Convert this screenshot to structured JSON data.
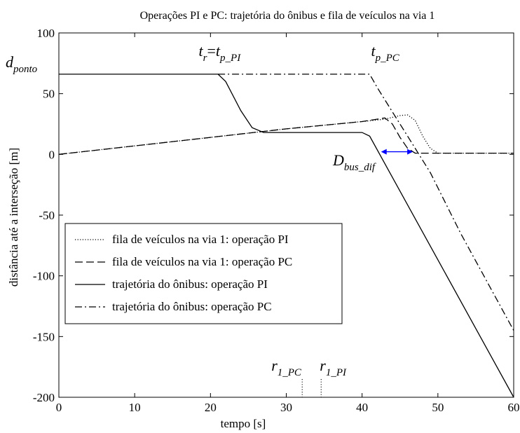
{
  "chart_data": {
    "type": "line",
    "title": "Operações PI e PC: trajetória do ônibus e fila de veículos na via 1",
    "xlabel": "tempo [s]",
    "ylabel": "distância até a interseção [m]",
    "xlim": [
      0,
      60
    ],
    "ylim": [
      -200,
      100
    ],
    "xticks": [
      0,
      10,
      20,
      30,
      40,
      50,
      60
    ],
    "yticks": [
      -200,
      -150,
      -100,
      -50,
      0,
      50,
      100
    ],
    "xtick_labels": [
      "0",
      "10",
      "20",
      "30",
      "40",
      "50",
      "60"
    ],
    "ytick_labels": [
      "-200",
      "-150",
      "-100",
      "-50",
      "0",
      "50",
      "100"
    ],
    "grid": false,
    "legend_position": "lower-left",
    "series": [
      {
        "name": "fila de veículos na via 1: operação PI",
        "style": "dotted",
        "color": "#000000",
        "points": [
          [
            0,
            0
          ],
          [
            10,
            7
          ],
          [
            20,
            14
          ],
          [
            30,
            21
          ],
          [
            40,
            27
          ],
          [
            43,
            29
          ],
          [
            45,
            32
          ],
          [
            46,
            32.5
          ],
          [
            47,
            28
          ],
          [
            48,
            15
          ],
          [
            49,
            5
          ],
          [
            50,
            1
          ],
          [
            60,
            1
          ]
        ]
      },
      {
        "name": "fila de veículos na via 1: operação PC",
        "style": "dashed",
        "color": "#000000",
        "points": [
          [
            0,
            0
          ],
          [
            10,
            7
          ],
          [
            20,
            14
          ],
          [
            30,
            21
          ],
          [
            40,
            27
          ],
          [
            43,
            30
          ],
          [
            44,
            25
          ],
          [
            45,
            14
          ],
          [
            46,
            5
          ],
          [
            47,
            1
          ],
          [
            60,
            1
          ]
        ]
      },
      {
        "name": "trajetória do ônibus: operação PI",
        "style": "solid",
        "color": "#000000",
        "points": [
          [
            0,
            66
          ],
          [
            21,
            66
          ],
          [
            22,
            60
          ],
          [
            24,
            36
          ],
          [
            25.5,
            22
          ],
          [
            27,
            18
          ],
          [
            40,
            18
          ],
          [
            41,
            15
          ],
          [
            60,
            -200
          ]
        ]
      },
      {
        "name": "trajetória do ônibus: operação PC",
        "style": "dashdot",
        "color": "#000000",
        "points": [
          [
            21,
            66
          ],
          [
            41,
            66
          ],
          [
            42,
            55
          ],
          [
            44,
            35
          ],
          [
            46,
            15
          ],
          [
            49,
            -15
          ],
          [
            53,
            -65
          ],
          [
            60,
            -145
          ]
        ]
      }
    ],
    "annotations": {
      "d_ponto": {
        "main": "d",
        "sub": "ponto",
        "y": 66
      },
      "tr_eq_tp_pi": {
        "main1": "t",
        "sub1": "r",
        "eq": "=",
        "main2": "t",
        "sub2": "p_PI",
        "x": 19
      },
      "tp_pc": {
        "main": "t",
        "sub": "p_PC",
        "x": 41
      },
      "d_bus_dif": {
        "main": "D",
        "sub": "bus_dif",
        "arrow_from_x": 42.5,
        "arrow_to_x": 46.7,
        "y": 1,
        "color": "#0000ff"
      },
      "r1_pc": {
        "main": "r",
        "sub": "1_PC",
        "x": 32.1
      },
      "r1_pi": {
        "main": "r",
        "sub": "1_PI",
        "x": 34.6
      }
    }
  }
}
